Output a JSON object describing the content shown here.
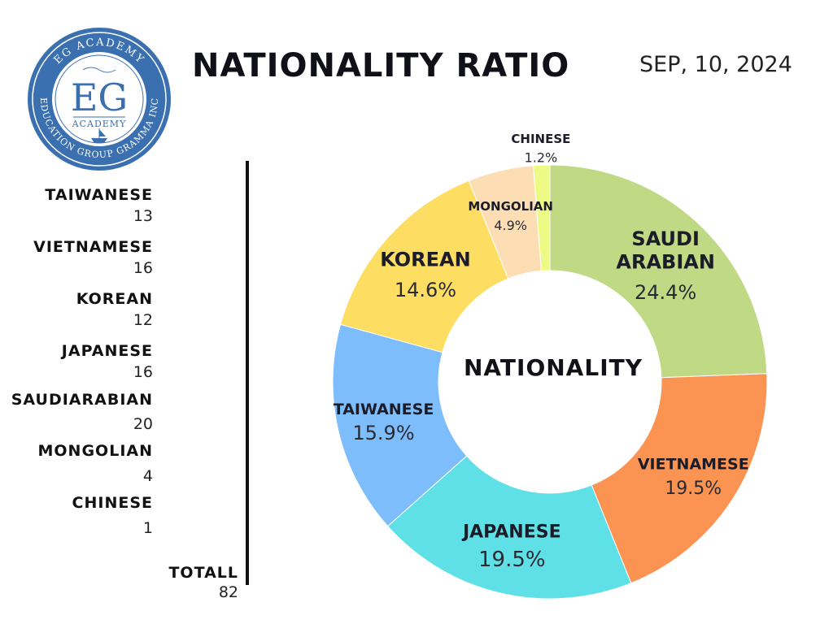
{
  "header": {
    "title": "NATIONALITY RATIO",
    "date": "SEP, 10, 2024"
  },
  "logo": {
    "ring_top": "EG ACADEMY",
    "ring_bottom": "EDUCATION GROUP GRAMMA INC",
    "monogram": "EG",
    "word": "ACADEMY",
    "color": "#3a6fb0"
  },
  "legend": {
    "items": [
      {
        "name": "TAIWANESE",
        "count": "13"
      },
      {
        "name": "VIETNAMESE",
        "count": "16"
      },
      {
        "name": "KOREAN",
        "count": "12"
      },
      {
        "name": "JAPANESE",
        "count": "16"
      },
      {
        "name": "SAUDIARABIAN",
        "count": "20"
      },
      {
        "name": "MONGOLIAN",
        "count": "4"
      },
      {
        "name": "CHINESE",
        "count": "1"
      }
    ],
    "total_label": "TOTALL",
    "total_value": "82"
  },
  "chart_data": {
    "type": "pie",
    "title": "",
    "center_label": "NATIONALITY",
    "slices": [
      {
        "name": "SAUDI ARABIAN",
        "label_lines": [
          "SAUDI",
          "ARABIAN"
        ],
        "value": 20,
        "percent": "24.4%",
        "color": "#bfd985"
      },
      {
        "name": "VIETNAMESE",
        "label_lines": [
          "VIETNAMESE"
        ],
        "value": 16,
        "percent": "19.5%",
        "color": "#fb9352"
      },
      {
        "name": "JAPANESE",
        "label_lines": [
          "JAPANESE"
        ],
        "value": 16,
        "percent": "19.5%",
        "color": "#5ee0e6"
      },
      {
        "name": "TAIWANESE",
        "label_lines": [
          "TAIWANESE"
        ],
        "value": 13,
        "percent": "15.9%",
        "color": "#7dbdfc"
      },
      {
        "name": "KOREAN",
        "label_lines": [
          "KOREAN"
        ],
        "value": 12,
        "percent": "14.6%",
        "color": "#fede62"
      },
      {
        "name": "MONGOLIAN",
        "label_lines": [
          "MONGOLIAN"
        ],
        "value": 4,
        "percent": "4.9%",
        "color": "#fddeb4"
      },
      {
        "name": "CHINESE",
        "label_lines": [
          "CHINESE"
        ],
        "value": 1,
        "percent": "1.2%",
        "color": "#edfa84"
      }
    ]
  }
}
